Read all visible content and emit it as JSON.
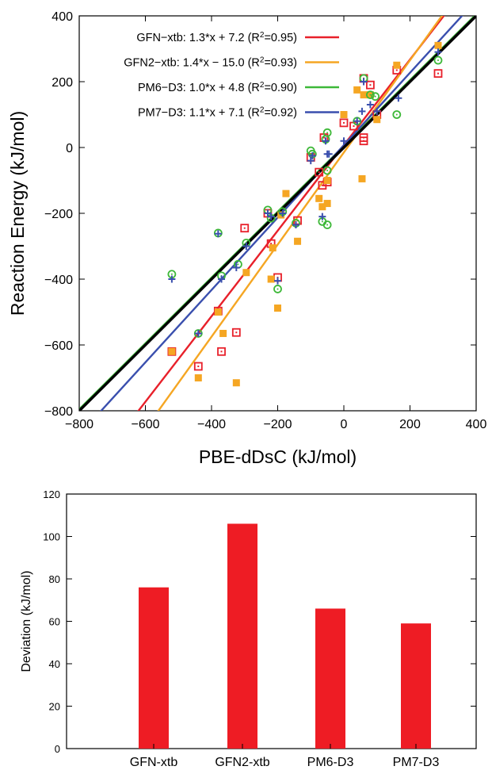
{
  "chart_data": [
    {
      "type": "scatter",
      "xlabel": "PBE-dDsC (kJ/mol)",
      "ylabel": "Reaction Energy (kJ/mol)",
      "xlim": [
        -800,
        400
      ],
      "ylim": [
        -800,
        400
      ],
      "x_ticks": [
        -800,
        -600,
        -400,
        -200,
        0,
        200,
        400
      ],
      "y_ticks": [
        -800,
        -600,
        -400,
        -200,
        0,
        200,
        400
      ],
      "legend_position": "top-left",
      "series": [
        {
          "name": "GFN-xtb",
          "label": "GFN−xtb: 1.3*x + 7.2 (R",
          "r2": "=0.95)",
          "color": "#e8202a",
          "marker": "open-square",
          "fit": {
            "slope": 1.3,
            "intercept": 7.2
          },
          "points": [
            [
              -520,
              -620
            ],
            [
              -440,
              -665
            ],
            [
              -380,
              -497
            ],
            [
              -370,
              -620
            ],
            [
              -325,
              -562
            ],
            [
              -300,
              -245
            ],
            [
              -230,
              -200
            ],
            [
              -220,
              -292
            ],
            [
              -200,
              -395
            ],
            [
              -140,
              -222
            ],
            [
              -100,
              -30
            ],
            [
              -75,
              -75
            ],
            [
              -65,
              -115
            ],
            [
              -60,
              30
            ],
            [
              -50,
              -105
            ],
            [
              0,
              75
            ],
            [
              30,
              65
            ],
            [
              60,
              210
            ],
            [
              60,
              20
            ],
            [
              60,
              30
            ],
            [
              80,
              190
            ],
            [
              100,
              100
            ],
            [
              160,
              235
            ],
            [
              285,
              225
            ]
          ]
        },
        {
          "name": "GFN2-xtb",
          "label": "GFN2−xtb: 1.4*x − 15.0 (R",
          "r2": "=0.93)",
          "color": "#f5a623",
          "marker": "filled-square",
          "fit": {
            "slope": 1.4,
            "intercept": -15.0
          },
          "points": [
            [
              -520,
              -620
            ],
            [
              -440,
              -700
            ],
            [
              -380,
              -500
            ],
            [
              -365,
              -565
            ],
            [
              -325,
              -715
            ],
            [
              -295,
              -380
            ],
            [
              -220,
              -400
            ],
            [
              -215,
              -305
            ],
            [
              -200,
              -488
            ],
            [
              -190,
              -205
            ],
            [
              -175,
              -140
            ],
            [
              -140,
              -285
            ],
            [
              -75,
              -155
            ],
            [
              -65,
              -180
            ],
            [
              -50,
              -170
            ],
            [
              -50,
              -100
            ],
            [
              0,
              100
            ],
            [
              40,
              175
            ],
            [
              55,
              -95
            ],
            [
              60,
              160
            ],
            [
              80,
              160
            ],
            [
              100,
              85
            ],
            [
              160,
              250
            ],
            [
              285,
              310
            ]
          ]
        },
        {
          "name": "PM6-D3",
          "label": "PM6−D3: 1.0*x + 4.8 (R",
          "r2": "=0.90)",
          "color": "#3db838",
          "marker": "open-circle",
          "fit": {
            "slope": 1.0,
            "intercept": 4.8
          },
          "points": [
            [
              -520,
              -385
            ],
            [
              -440,
              -565
            ],
            [
              -380,
              -260
            ],
            [
              -370,
              -390
            ],
            [
              -320,
              -355
            ],
            [
              -295,
              -290
            ],
            [
              -230,
              -190
            ],
            [
              -220,
              -215
            ],
            [
              -200,
              -430
            ],
            [
              -185,
              -195
            ],
            [
              -145,
              -230
            ],
            [
              -100,
              -10
            ],
            [
              -95,
              -20
            ],
            [
              -65,
              -225
            ],
            [
              -55,
              25
            ],
            [
              -50,
              45
            ],
            [
              -50,
              -235
            ],
            [
              -50,
              -70
            ],
            [
              40,
              80
            ],
            [
              60,
              210
            ],
            [
              80,
              160
            ],
            [
              95,
              155
            ],
            [
              160,
              100
            ],
            [
              285,
              265
            ]
          ]
        },
        {
          "name": "PM7-D3",
          "label": "PM7−D3: 1.1*x + 7.1 (R",
          "r2": "=0.92)",
          "color": "#3a4fae",
          "marker": "plus",
          "fit": {
            "slope": 1.1,
            "intercept": 7.1
          },
          "points": [
            [
              -520,
              -400
            ],
            [
              -440,
              -565
            ],
            [
              -380,
              -262
            ],
            [
              -370,
              -400
            ],
            [
              -325,
              -365
            ],
            [
              -295,
              -300
            ],
            [
              -230,
              -200
            ],
            [
              -220,
              -210
            ],
            [
              -200,
              -405
            ],
            [
              -185,
              -200
            ],
            [
              -145,
              -235
            ],
            [
              -100,
              -40
            ],
            [
              -95,
              -25
            ],
            [
              -65,
              -210
            ],
            [
              -55,
              20
            ],
            [
              -50,
              -20
            ],
            [
              -45,
              -20
            ],
            [
              0,
              20
            ],
            [
              40,
              80
            ],
            [
              55,
              110
            ],
            [
              60,
              200
            ],
            [
              80,
              130
            ],
            [
              100,
              110
            ],
            [
              165,
              150
            ],
            [
              285,
              290
            ]
          ]
        }
      ],
      "identity_line": {
        "color": "#000000"
      }
    },
    {
      "type": "bar",
      "categories": [
        "GFN-xtb",
        "GFN2-xtb",
        "PM6-D3",
        "PM7-D3"
      ],
      "values": [
        76,
        106,
        66,
        59
      ],
      "ylabel": "Deviation (kJ/mol)",
      "ylim": [
        0,
        120
      ],
      "y_ticks": [
        0,
        20,
        40,
        60,
        80,
        100,
        120
      ],
      "bar_color": "#ee1c24"
    }
  ]
}
